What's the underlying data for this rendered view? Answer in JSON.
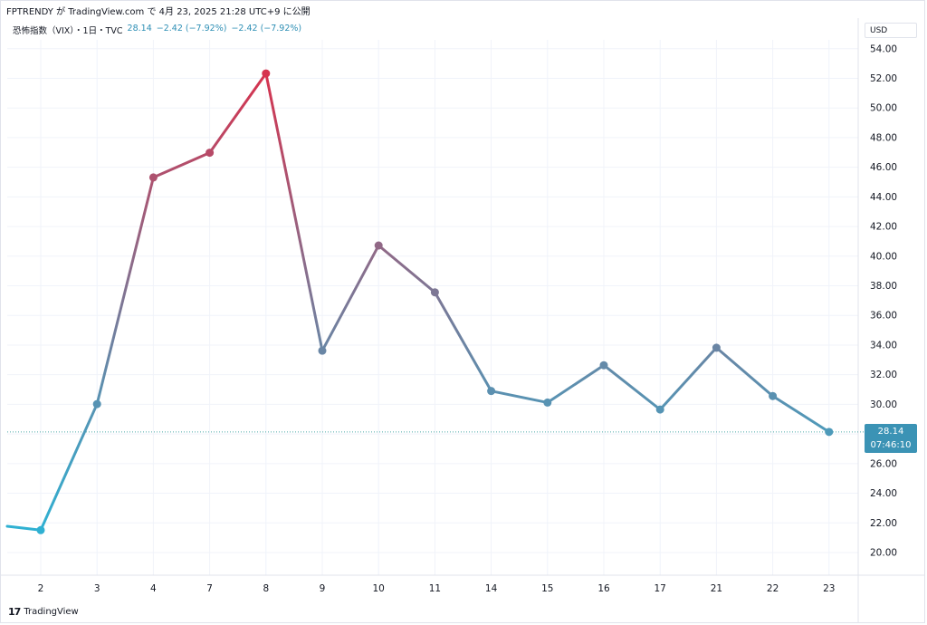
{
  "header": {
    "published": "FPTRENDY が TradingView.com で 4月 23, 2025 21:28 UTC+9 に公開"
  },
  "legend": {
    "symbol": "恐怖指数（VIX）・1日・TVC",
    "last": "28.14",
    "change1": "−2.42 (−7.92%)",
    "change2": "−2.42 (−7.92%)"
  },
  "currency": "USD",
  "price_label": {
    "value": "28.14",
    "countdown": "07:46:10"
  },
  "footer": {
    "brand": "TradingView",
    "logo_icon": "tradingview-logo-icon"
  },
  "colors": {
    "low": "#2fb0d2",
    "mid": "#7a7a98",
    "high": "#d6324e",
    "grid": "#f0f3fa",
    "last_line": "#4ba7a6",
    "label_bg": "#3b93b5"
  },
  "chart_data": {
    "type": "line",
    "title": "",
    "xlabel": "",
    "ylabel": "",
    "categories": [
      "2",
      "3",
      "4",
      "7",
      "8",
      "9",
      "10",
      "11",
      "14",
      "15",
      "16",
      "17",
      "21",
      "22",
      "23"
    ],
    "series": [
      {
        "values": [
          21.51,
          30.02,
          45.31,
          46.98,
          52.33,
          33.62,
          40.72,
          37.56,
          30.9,
          30.12,
          32.64,
          29.65,
          33.82,
          30.56,
          28.14
        ]
      }
    ],
    "previous_value": 21.77,
    "ylim": [
      18.0,
      55.5
    ],
    "yticks": [
      "20.00",
      "22.00",
      "24.00",
      "26.00",
      "28.00",
      "30.00",
      "32.00",
      "34.00",
      "36.00",
      "38.00",
      "40.00",
      "42.00",
      "44.00",
      "46.00",
      "48.00",
      "50.00",
      "52.00",
      "54.00"
    ],
    "last_value": 28.14,
    "grid": true,
    "legend_position": "top-left"
  }
}
